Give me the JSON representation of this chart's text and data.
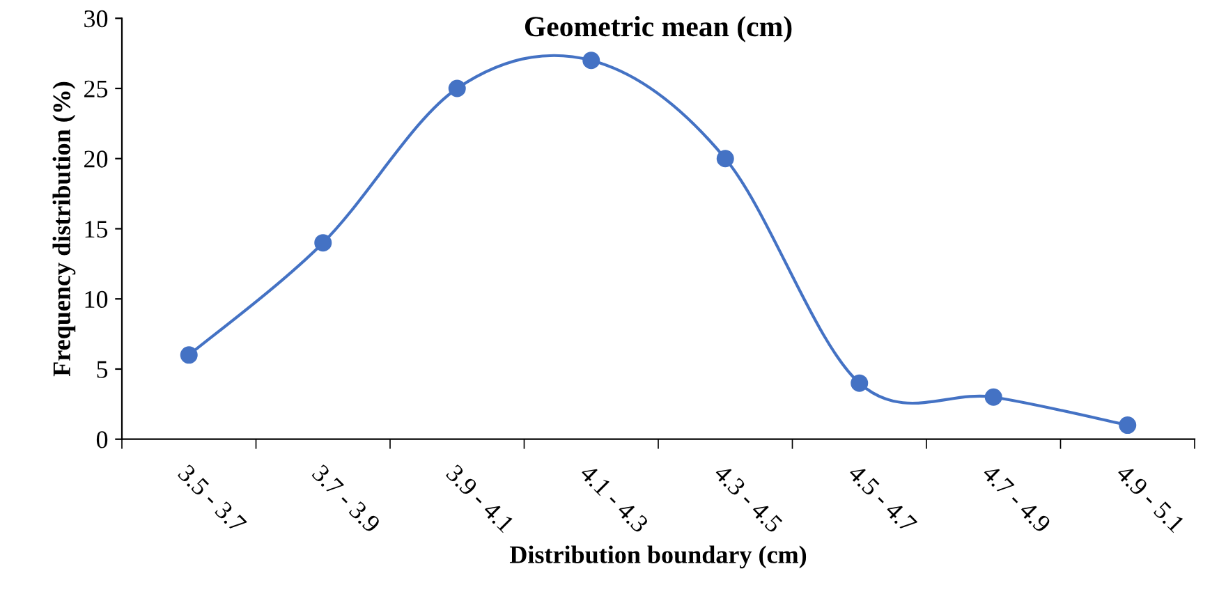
{
  "chart_data": {
    "type": "line",
    "title": "Geometric mean (cm)",
    "xlabel": "Distribution boundary (cm)",
    "ylabel": "Frequency distribution (%)",
    "categories": [
      "3.5 - 3.7",
      "3.7 - 3.9",
      "3.9 - 4.1",
      "4.1 - 4.3",
      "4.3 - 4.5",
      "4.5 - 4.7",
      "4.7 - 4.9",
      "4.9 - 5.1"
    ],
    "series": [
      {
        "color": "#4472c4",
        "values": [
          6,
          14,
          25,
          27,
          20,
          4,
          3,
          1
        ]
      }
    ],
    "ylim": [
      0,
      30
    ],
    "yticks": [
      0,
      5,
      10,
      15,
      20,
      25,
      30
    ],
    "grid": false,
    "legend": false,
    "marker": "circle",
    "line_style": "solid"
  }
}
